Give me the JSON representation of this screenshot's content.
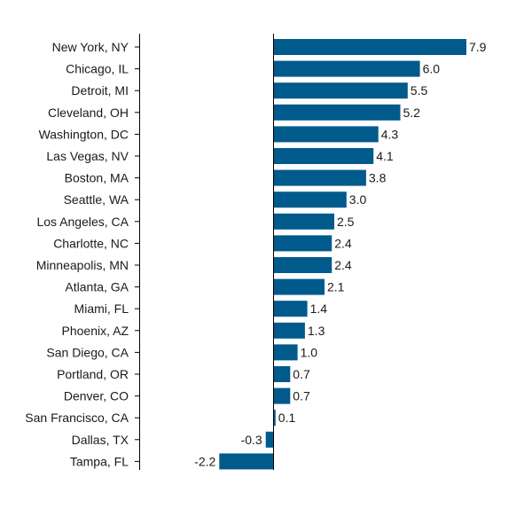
{
  "chart_data": {
    "type": "bar",
    "orientation": "horizontal",
    "title": "",
    "xlabel": "",
    "ylabel": "",
    "grid": false,
    "data_labels": true,
    "xlim": [
      -2.2,
      7.9
    ],
    "bar_color": "#005a8c",
    "categories": [
      "New York, NY",
      "Chicago, IL",
      "Detroit, MI",
      "Cleveland, OH",
      "Washington, DC",
      "Las Vegas, NV",
      "Boston, MA",
      "Seattle, WA",
      "Los Angeles, CA",
      "Charlotte, NC",
      "Minneapolis, MN",
      "Atlanta, GA",
      "Miami, FL",
      "Phoenix, AZ",
      "San Diego, CA",
      "Portland, OR",
      "Denver, CO",
      "San Francisco, CA",
      "Dallas, TX",
      "Tampa, FL"
    ],
    "values": [
      7.9,
      6.0,
      5.5,
      5.2,
      4.3,
      4.1,
      3.8,
      3.0,
      2.5,
      2.4,
      2.4,
      2.1,
      1.4,
      1.3,
      1.0,
      0.7,
      0.7,
      0.1,
      -0.3,
      -2.2
    ],
    "value_labels": [
      "7.9",
      "6.0",
      "5.5",
      "5.2",
      "4.3",
      "4.1",
      "3.8",
      "3.0",
      "2.5",
      "2.4",
      "2.4",
      "2.1",
      "1.4",
      "1.3",
      "1.0",
      "0.7",
      "0.7",
      "0.1",
      "-0.3",
      "-2.2"
    ]
  }
}
